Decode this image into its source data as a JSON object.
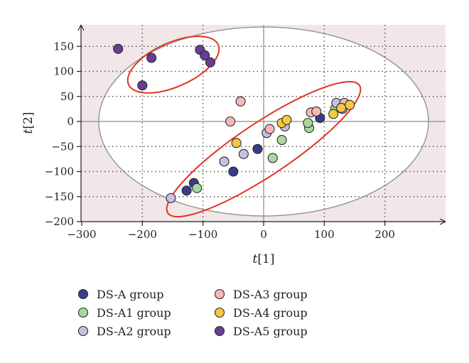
{
  "chart_data": {
    "type": "scatter",
    "xlabel_main": "t",
    "xlabel_sub": "[1]",
    "ylabel_main": "t",
    "ylabel_sub": "[2]",
    "xlim": [
      -300,
      300
    ],
    "ylim": [
      -200,
      200
    ],
    "x_ticks": [
      -300,
      -200,
      -100,
      0,
      100,
      200
    ],
    "y_ticks": [
      -200,
      -150,
      -100,
      -50,
      0,
      50,
      100,
      150
    ],
    "x_tick_labels": [
      "−300",
      "−200",
      "−100",
      "0",
      "100",
      "200"
    ],
    "y_tick_labels": [
      "−200",
      "−150",
      "−100",
      "−50",
      "0",
      "50",
      "100",
      "150"
    ],
    "grid": true,
    "legend_position": "bottom",
    "series": [
      {
        "name": "DS-A group",
        "color": "#3b3b8c",
        "points": [
          [
            -127,
            -138
          ],
          [
            -115,
            -123
          ],
          [
            -50,
            -100
          ],
          [
            -10,
            -55
          ],
          [
            93,
            7
          ]
        ]
      },
      {
        "name": "DS-A1 group",
        "color": "#a8d8a0",
        "points": [
          [
            -110,
            -133
          ],
          [
            15,
            -73
          ],
          [
            30,
            -37
          ],
          [
            75,
            -13
          ],
          [
            73,
            -3
          ],
          [
            118,
            25
          ]
        ]
      },
      {
        "name": "DS-A2 group",
        "color": "#c8bee0",
        "points": [
          [
            -153,
            -153
          ],
          [
            -65,
            -80
          ],
          [
            -33,
            -65
          ],
          [
            5,
            -23
          ],
          [
            35,
            -10
          ],
          [
            120,
            37
          ],
          [
            130,
            25
          ]
        ]
      },
      {
        "name": "DS-A3 group",
        "color": "#f5b8b8",
        "points": [
          [
            -55,
            0
          ],
          [
            -38,
            40
          ],
          [
            10,
            -15
          ],
          [
            78,
            18
          ],
          [
            87,
            20
          ],
          [
            133,
            37
          ]
        ]
      },
      {
        "name": "DS-A4 group",
        "color": "#f5c842",
        "points": [
          [
            -45,
            -43
          ],
          [
            30,
            -3
          ],
          [
            38,
            3
          ],
          [
            115,
            15
          ],
          [
            128,
            27
          ],
          [
            142,
            33
          ]
        ]
      },
      {
        "name": "DS-A5 group",
        "color": "#6a3d95",
        "points": [
          [
            -240,
            145
          ],
          [
            -185,
            127
          ],
          [
            -200,
            72
          ],
          [
            -105,
            143
          ],
          [
            -97,
            132
          ],
          [
            -88,
            118
          ]
        ]
      }
    ]
  }
}
